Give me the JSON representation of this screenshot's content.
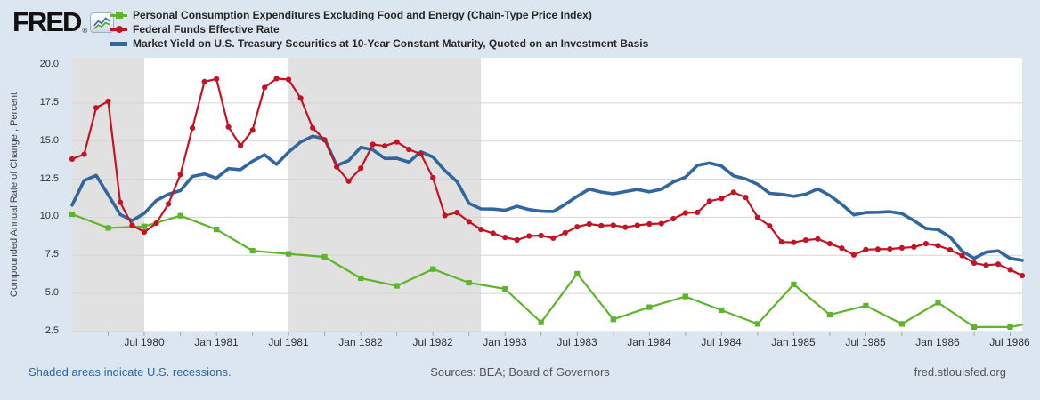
{
  "header": {
    "logo_text": "FRED",
    "registered_mark": "®"
  },
  "chart_data": {
    "type": "line",
    "ylabel": "Compounded Annual Rate of Change , Percent",
    "ylim": [
      2.5,
      20.0
    ],
    "yticks": [
      20.0,
      17.5,
      15.0,
      12.5,
      10.0,
      7.5,
      5.0,
      2.5
    ],
    "grid_values": [
      2.5,
      5.0,
      7.5,
      10.0,
      12.5,
      15.0,
      17.5
    ],
    "gridline_color": "#d5d5d5",
    "recession_color": "#e1e1e1",
    "x_start": "Jan 1980",
    "x_end": "Aug 1986",
    "total_months": 79,
    "minor_tick_step": 3,
    "xticks": [
      {
        "label": "Jul 1980",
        "month": 6
      },
      {
        "label": "Jan 1981",
        "month": 12
      },
      {
        "label": "Jul 1981",
        "month": 18
      },
      {
        "label": "Jan 1982",
        "month": 24
      },
      {
        "label": "Jul 1982",
        "month": 30
      },
      {
        "label": "Jan 1983",
        "month": 36
      },
      {
        "label": "Jul 1983",
        "month": 42
      },
      {
        "label": "Jan 1984",
        "month": 48
      },
      {
        "label": "Jul 1984",
        "month": 54
      },
      {
        "label": "Jan 1985",
        "month": 60
      },
      {
        "label": "Jul 1985",
        "month": 66
      },
      {
        "label": "Jan 1986",
        "month": 72
      },
      {
        "label": "Jul 1986",
        "month": 78
      }
    ],
    "recessions": [
      {
        "label": "Jan 1980 - Jul 1980",
        "start_month": 0,
        "end_month": 6
      },
      {
        "label": "Jul 1981 - Nov 1982",
        "start_month": 18,
        "end_month": 34
      }
    ],
    "series": [
      {
        "name": "Personal Consumption Expenditures Excluding Food and Energy (Chain-Type Price Index)",
        "color": "#5eb52b",
        "marker": "square",
        "frequency": "quarterly",
        "start": "1980 Q1",
        "values": [
          10.2,
          9.3,
          9.4,
          10.1,
          9.2,
          7.8,
          7.6,
          7.4,
          6.0,
          5.5,
          6.6,
          5.7,
          5.3,
          3.1,
          6.3,
          3.3,
          4.1,
          4.8,
          3.9,
          3.0,
          5.6,
          3.6,
          4.2,
          3.0,
          4.4,
          2.8,
          2.8
        ],
        "extend_to": {
          "month": 79,
          "value": 2.95
        }
      },
      {
        "name": "Federal Funds Effective Rate",
        "color": "#c41323",
        "marker": "circle",
        "frequency": "monthly",
        "start": "Jan 1980",
        "values": [
          13.82,
          14.13,
          17.19,
          17.61,
          10.98,
          9.47,
          9.03,
          9.61,
          10.87,
          12.81,
          15.85,
          18.9,
          19.08,
          15.93,
          14.7,
          15.72,
          18.52,
          19.1,
          19.04,
          17.82,
          15.87,
          15.08,
          13.31,
          12.37,
          13.22,
          14.78,
          14.68,
          14.94,
          14.45,
          14.15,
          12.59,
          10.12,
          10.31,
          9.71,
          9.2,
          8.95,
          8.68,
          8.51,
          8.77,
          8.8,
          8.63,
          8.98,
          9.37,
          9.56,
          9.45,
          9.48,
          9.34,
          9.47,
          9.56,
          9.59,
          9.91,
          10.29,
          10.32,
          11.06,
          11.23,
          11.64,
          11.3,
          9.99,
          9.43,
          8.38,
          8.35,
          8.5,
          8.58,
          8.27,
          7.97,
          7.53,
          7.88,
          7.9,
          7.92,
          7.99,
          8.05,
          8.27,
          8.14,
          7.86,
          7.48,
          6.99,
          6.85,
          6.92,
          6.56,
          6.17
        ]
      },
      {
        "name": "Market Yield on U.S. Treasury Securities at 10-Year Constant Maturity, Quoted on an Investment Basis",
        "color": "#31669f",
        "marker": "none",
        "frequency": "monthly",
        "start": "Jan 1980",
        "values": [
          10.8,
          12.41,
          12.75,
          11.47,
          10.18,
          9.78,
          10.25,
          11.1,
          11.51,
          11.75,
          12.68,
          12.84,
          12.57,
          13.19,
          13.12,
          13.68,
          14.1,
          13.47,
          14.28,
          14.94,
          15.32,
          15.15,
          13.39,
          13.72,
          14.59,
          14.43,
          13.86,
          13.87,
          13.62,
          14.3,
          13.95,
          13.06,
          12.34,
          10.91,
          10.55,
          10.54,
          10.46,
          10.72,
          10.51,
          10.4,
          10.38,
          10.85,
          11.38,
          11.85,
          11.65,
          11.54,
          11.69,
          11.83,
          11.67,
          11.84,
          12.32,
          12.63,
          13.41,
          13.56,
          13.36,
          12.72,
          12.52,
          12.16,
          11.57,
          11.5,
          11.38,
          11.51,
          11.86,
          11.43,
          10.85,
          10.16,
          10.31,
          10.33,
          10.37,
          10.24,
          9.78,
          9.26,
          9.19,
          8.7,
          7.78,
          7.3,
          7.71,
          7.8,
          7.3,
          7.17
        ]
      }
    ]
  },
  "footer": {
    "recession_note": "Shaded areas indicate U.S. recessions.",
    "sources": "Sources: BEA; Board of Governors",
    "site": "fred.stlouisfed.org"
  }
}
